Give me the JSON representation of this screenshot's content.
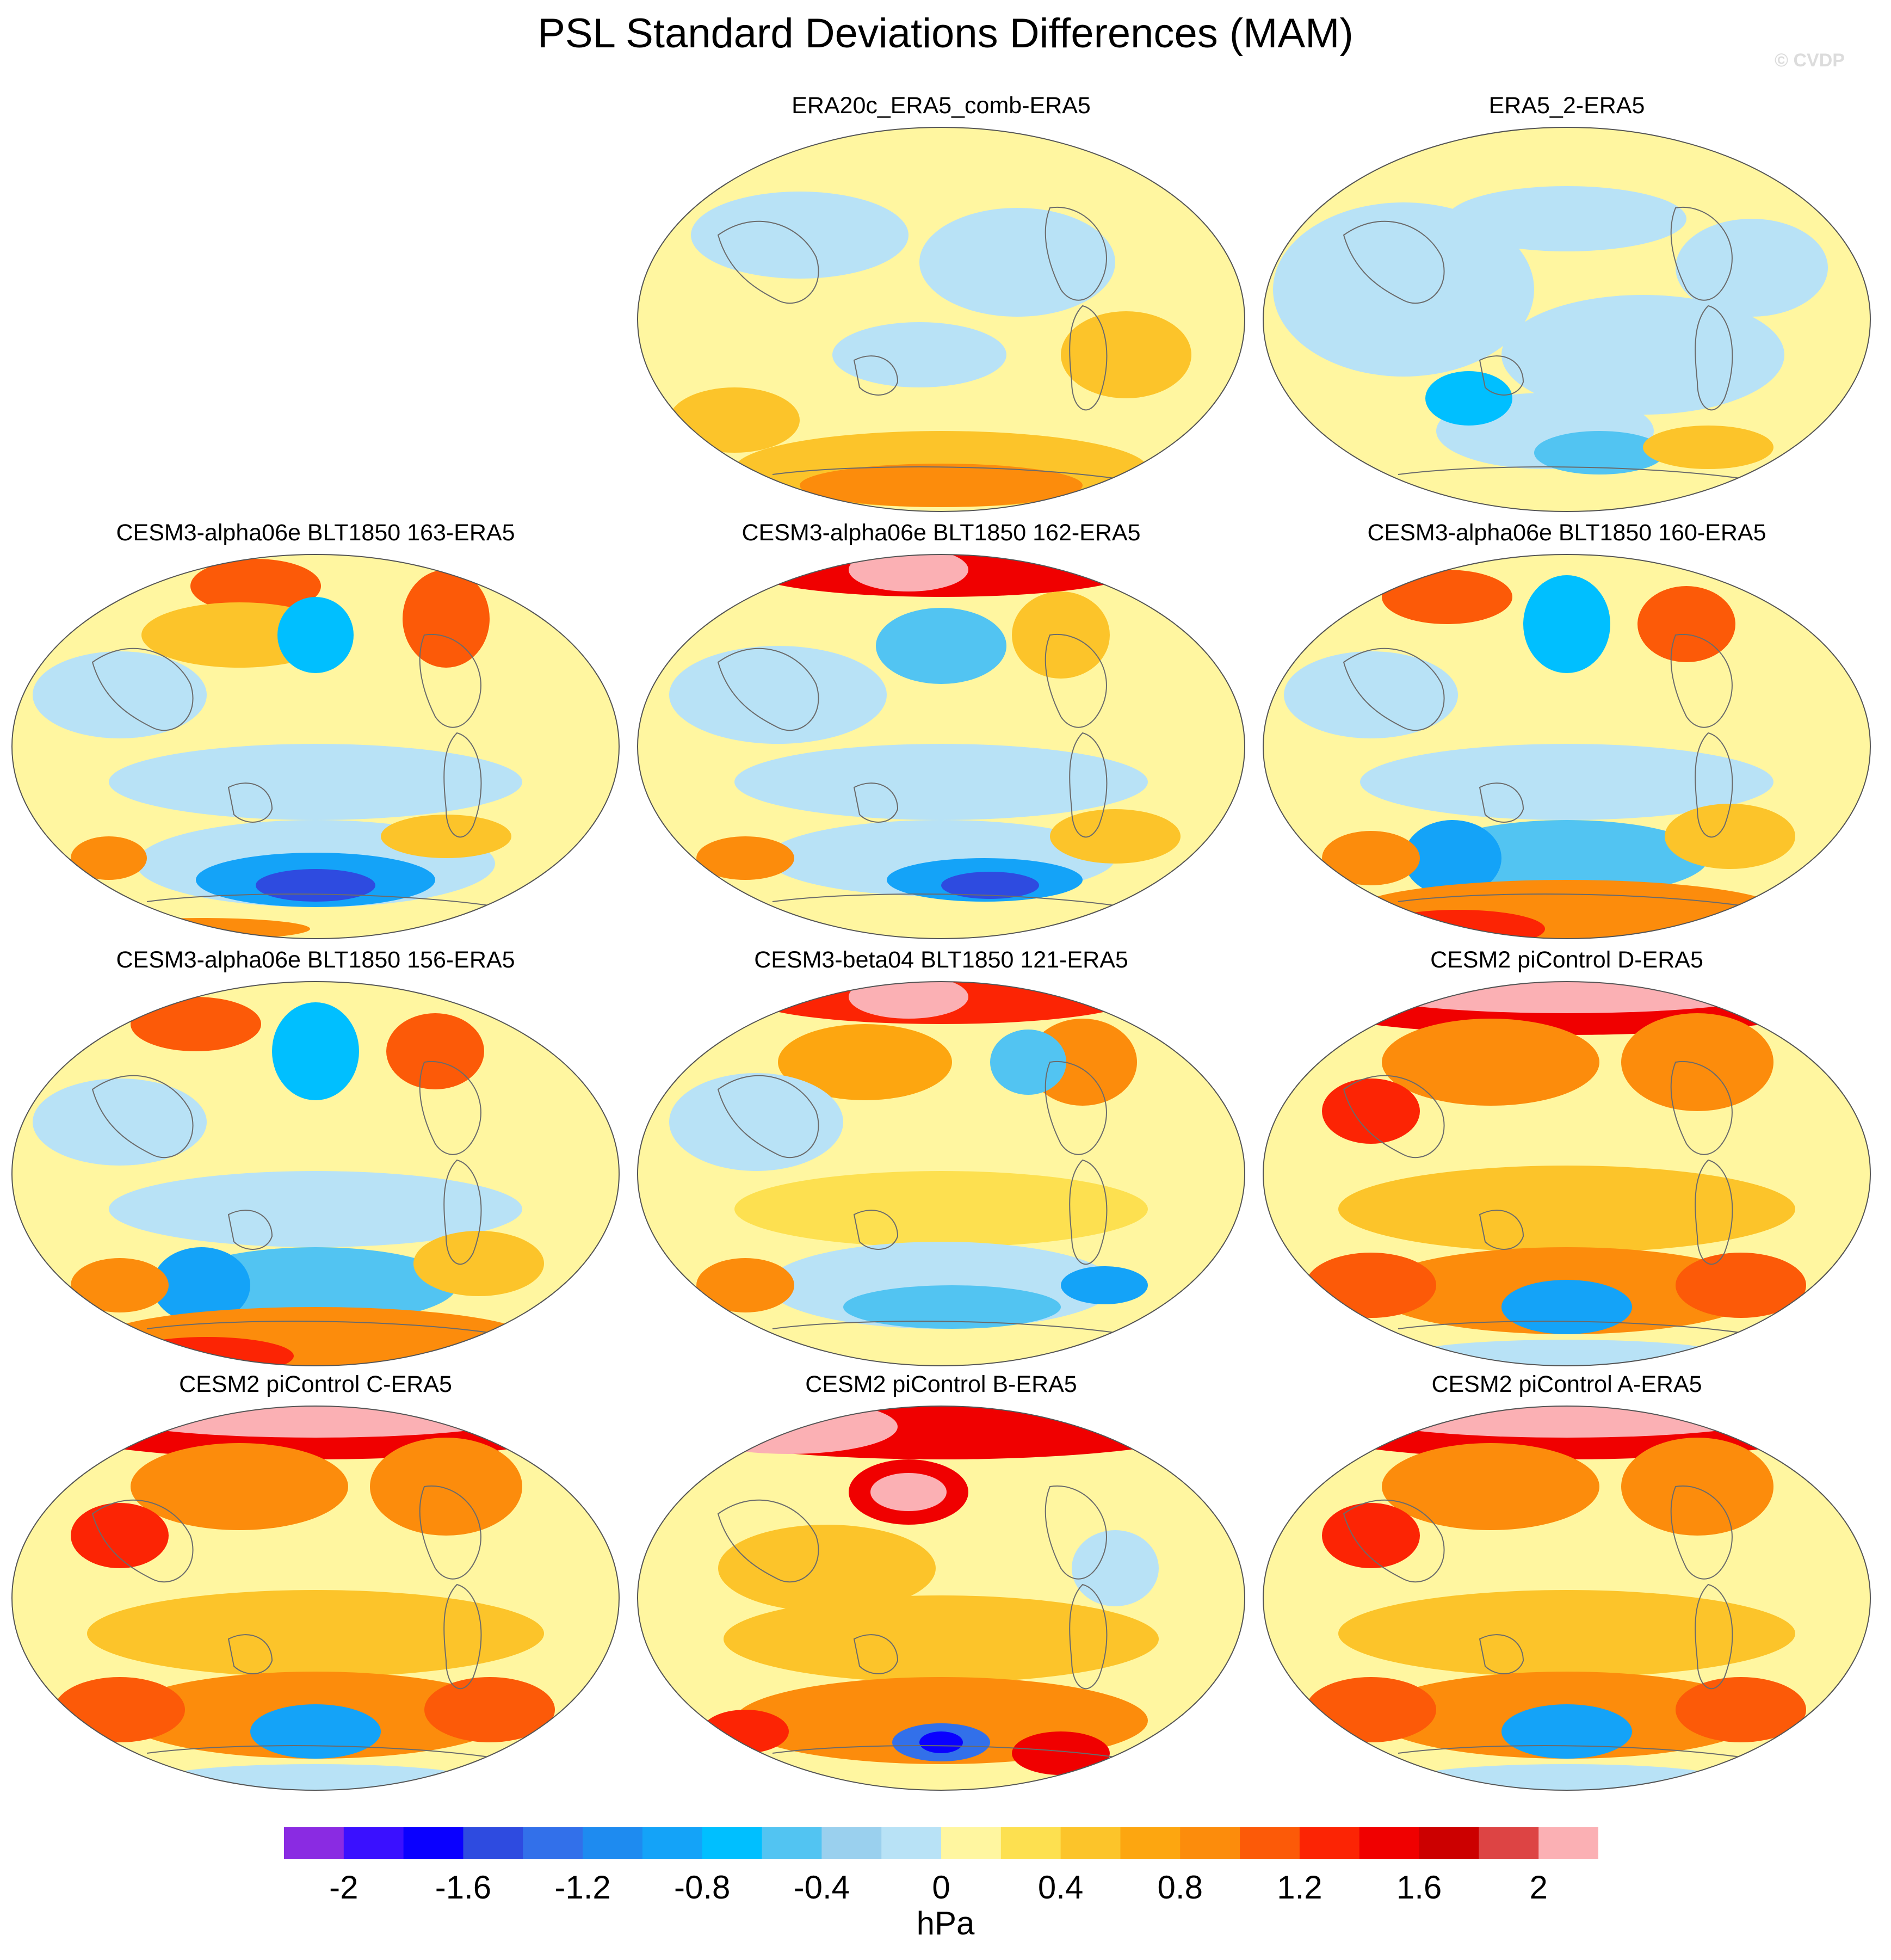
{
  "figure": {
    "title": "PSL Standard Deviations Differences (MAM)",
    "credit": "© CVDP"
  },
  "panels": [
    {
      "title": "ERA20c_ERA5_comb-ERA5",
      "row": 0,
      "col": 1,
      "variant": "mild_warm"
    },
    {
      "title": "ERA5_2-ERA5",
      "row": 0,
      "col": 2,
      "variant": "mild_cool"
    },
    {
      "title": "CESM3-alpha06e BLT1850 163-ERA5",
      "row": 1,
      "col": 0,
      "variant": "mixed_cool_south"
    },
    {
      "title": "CESM3-alpha06e BLT1850 162-ERA5",
      "row": 1,
      "col": 1,
      "variant": "strong_north_cool_south"
    },
    {
      "title": "CESM3-alpha06e BLT1850 160-ERA5",
      "row": 1,
      "col": 2,
      "variant": "mixed_warm_south"
    },
    {
      "title": "CESM3-alpha06e BLT1850 156-ERA5",
      "row": 2,
      "col": 0,
      "variant": "mixed_warm_south"
    },
    {
      "title": "CESM3-beta04 BLT1850 121-ERA5",
      "row": 2,
      "col": 1,
      "variant": "strong_north_mixed"
    },
    {
      "title": "CESM2 piControl D-ERA5",
      "row": 2,
      "col": 2,
      "variant": "strong_north_warm"
    },
    {
      "title": "CESM2 piControl C-ERA5",
      "row": 3,
      "col": 0,
      "variant": "strong_north_warm"
    },
    {
      "title": "CESM2 piControl B-ERA5",
      "row": 3,
      "col": 1,
      "variant": "strong_north_pacific"
    },
    {
      "title": "CESM2 piControl A-ERA5",
      "row": 3,
      "col": 2,
      "variant": "strong_north_warm"
    }
  ],
  "colorbar": {
    "colors": [
      "#8a2be2",
      "#3a10ff",
      "#0a00ff",
      "#2e4be0",
      "#3270ea",
      "#1e8bf0",
      "#14a3f8",
      "#00bfff",
      "#52c4f2",
      "#9ad0ee",
      "#b8e2f6",
      "#fff6a0",
      "#fde050",
      "#fcc42a",
      "#fda610",
      "#fc8c0c",
      "#fc5a08",
      "#fc2404",
      "#f00000",
      "#cc0000",
      "#dd4444",
      "#fbb0b4"
    ],
    "levels": [
      -2.2,
      -2.0,
      -1.8,
      -1.6,
      -1.4,
      -1.2,
      -1.0,
      -0.8,
      -0.6,
      -0.4,
      -0.2,
      0,
      0.2,
      0.4,
      0.6,
      0.8,
      1.0,
      1.2,
      1.4,
      1.6,
      1.8,
      2.0,
      2.2
    ],
    "tick_labels": [
      "-2",
      "-1.6",
      "-1.2",
      "-0.8",
      "-0.4",
      "0",
      "0.4",
      "0.8",
      "1.2",
      "1.6",
      "2"
    ],
    "units": "hPa"
  }
}
